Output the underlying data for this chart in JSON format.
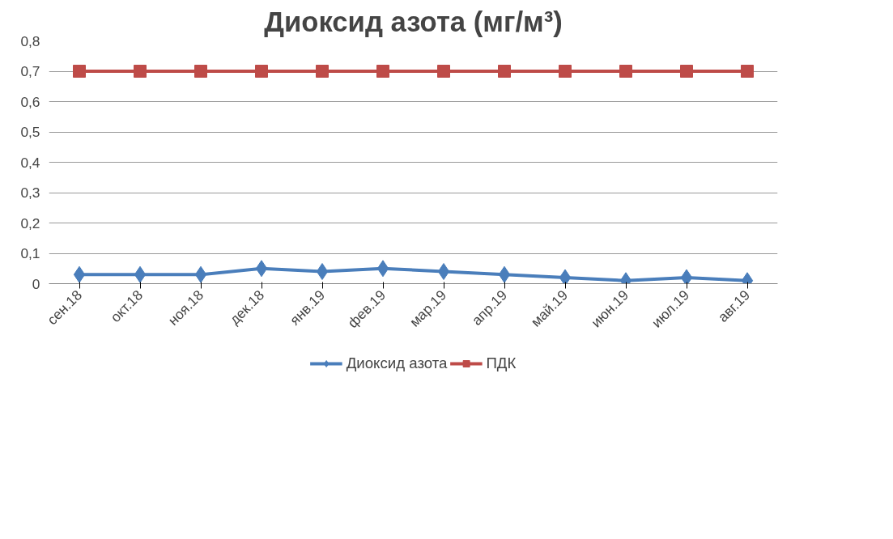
{
  "chart_data": {
    "type": "line",
    "title": "Диоксид азота (мг/м³)",
    "categories": [
      "сен.18",
      "окт.18",
      "ноя.18",
      "дек.18",
      "янв.19",
      "фев.19",
      "мар.19",
      "апр.19",
      "май.19",
      "июн.19",
      "июл.19",
      "авг.19"
    ],
    "series": [
      {
        "name": "Диоксид азота",
        "color": "#4a7ebb",
        "marker": "diamond",
        "values": [
          0.03,
          0.03,
          0.03,
          0.05,
          0.04,
          0.05,
          0.04,
          0.03,
          0.02,
          0.01,
          0.02,
          0.01
        ]
      },
      {
        "name": "ПДК",
        "color": "#be4b48",
        "marker": "square",
        "values": [
          0.7,
          0.7,
          0.7,
          0.7,
          0.7,
          0.7,
          0.7,
          0.7,
          0.7,
          0.7,
          0.7,
          0.7
        ]
      }
    ],
    "ylim": [
      0,
      0.8
    ],
    "yticks": [
      0,
      {
        "value": 0.1,
        "label": "0,1"
      },
      {
        "value": 0.2,
        "label": "0,2"
      },
      {
        "value": 0.3,
        "label": "0,3"
      },
      {
        "value": 0.4,
        "label": "0,4"
      },
      {
        "value": 0.5,
        "label": "0,5"
      },
      {
        "value": 0.6,
        "label": "0,6"
      },
      {
        "value": 0.7,
        "label": "0,7"
      },
      {
        "value": 0.8,
        "label": "0,8"
      }
    ],
    "grid": "y",
    "legend": "bottom",
    "line_style": "solid"
  }
}
